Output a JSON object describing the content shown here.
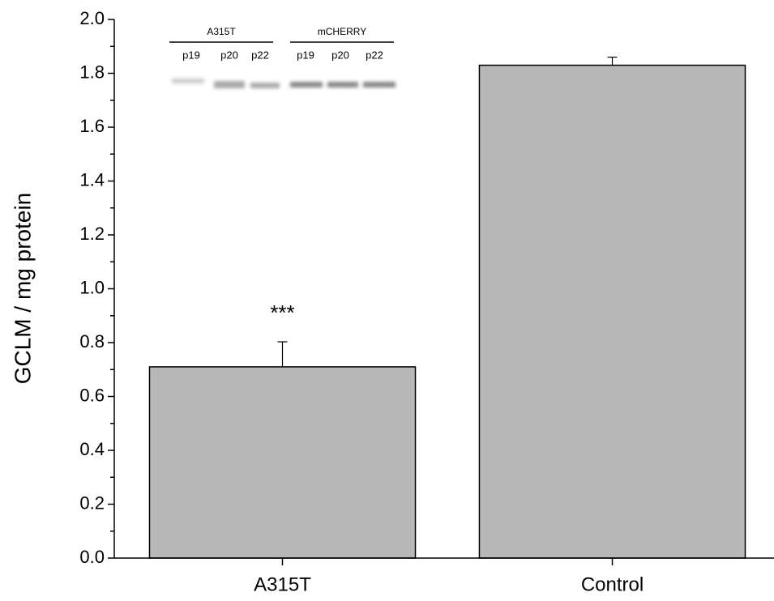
{
  "chart_data": {
    "type": "bar",
    "y_label": "GCLM / mg protein",
    "categories": [
      "A315T",
      "Control"
    ],
    "values": [
      0.71,
      1.83
    ],
    "errors": [
      0.093,
      0.03
    ],
    "color": "#b7b7b7",
    "ylim": [
      0,
      2
    ],
    "yticks": [
      {
        "value": 0,
        "label": "0.0"
      },
      0.2,
      0.4,
      0.6,
      0.8,
      {
        "value": 1,
        "label": "1.0"
      },
      1.2,
      1.4,
      1.6,
      1.8,
      {
        "value": 2,
        "label": "2.0"
      }
    ],
    "annotations": [
      "***"
    ],
    "inset": {
      "groups": [
        {
          "label": "A315T",
          "lanes": [
            "p19",
            "p20",
            "p22"
          ]
        },
        {
          "label": "mCHERRY",
          "lanes": [
            "p19",
            "p20",
            "p22"
          ]
        }
      ]
    }
  }
}
